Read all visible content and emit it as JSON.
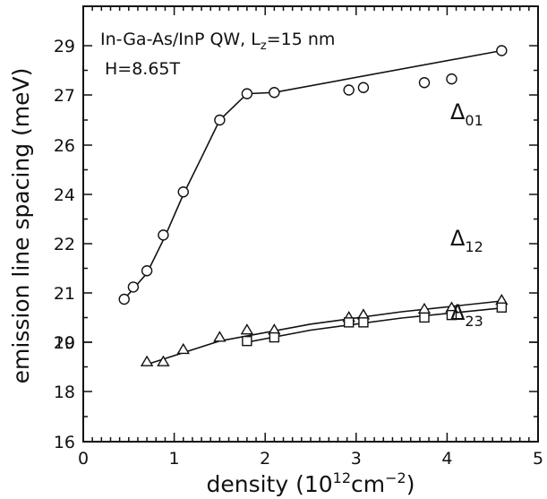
{
  "chart_data": {
    "type": "scatter",
    "title_line1": "In-Ga-As/InP  QW,  L",
    "title_sub": "z",
    "title_tail": "=15  nm",
    "field_label": "H=8.65T",
    "ylabel": "emission  line  spacing  (meV)",
    "xlabel_main": "density  (10",
    "xlabel_exp1": "12",
    "xlabel_mid": "cm",
    "xlabel_exp2": "−2",
    "xlabel_close": ")",
    "xlim": [
      0,
      5
    ],
    "xticks": [
      "0",
      "1",
      "2",
      "3",
      "4",
      "5"
    ],
    "xtick_values": [
      0,
      1,
      2,
      3,
      4,
      5
    ],
    "yticks": [
      "16",
      "18",
      "19",
      "20",
      "21",
      "22",
      "24",
      "26",
      "27",
      "29"
    ],
    "ytick_values": [
      16,
      18,
      19,
      20,
      21,
      22,
      24,
      26,
      27,
      29
    ],
    "grid": false,
    "series": [
      {
        "name": "Δ",
        "name_sub": "01",
        "marker": "circle",
        "x": [
          0.45,
          0.55,
          0.7,
          0.88,
          1.1,
          1.5,
          1.8,
          2.1,
          2.92,
          3.08,
          3.75,
          4.05,
          4.6
        ],
        "y": [
          20.75,
          21.12,
          21.45,
          22.35,
          24.1,
          26.5,
          27.05,
          27.1,
          27.2,
          27.3,
          27.5,
          27.65,
          28.8
        ],
        "fit_x": [
          0.45,
          0.7,
          0.9,
          1.1,
          1.3,
          1.5,
          1.8,
          2.1,
          4.6
        ],
        "fit_y": [
          20.75,
          21.4,
          22.3,
          24.0,
          25.5,
          26.5,
          27.05,
          27.1,
          28.8
        ]
      },
      {
        "name": "Δ",
        "name_sub": "12",
        "marker": "triangle",
        "x": [
          0.7,
          0.88,
          1.1,
          1.5,
          1.8,
          2.1,
          2.92,
          3.08,
          3.75,
          4.05,
          4.6
        ],
        "y": [
          18.6,
          18.6,
          18.85,
          19.2,
          19.5,
          19.5,
          20.02,
          20.12,
          20.35,
          20.4,
          20.7
        ],
        "fit_x": [
          0.7,
          1.5,
          2.5,
          3.5,
          4.6
        ],
        "fit_y": [
          18.55,
          19.05,
          19.75,
          20.25,
          20.68
        ]
      },
      {
        "name": "Δ",
        "name_sub": "23",
        "marker": "square",
        "x": [
          1.8,
          2.1,
          2.92,
          3.08,
          3.75,
          4.05,
          4.6
        ],
        "y": [
          19.05,
          19.2,
          19.82,
          19.82,
          20.02,
          20.12,
          20.42
        ],
        "fit_x": [
          1.8,
          2.5,
          3.5,
          4.6
        ],
        "fit_y": [
          19.0,
          19.5,
          20.0,
          20.4
        ]
      }
    ]
  }
}
